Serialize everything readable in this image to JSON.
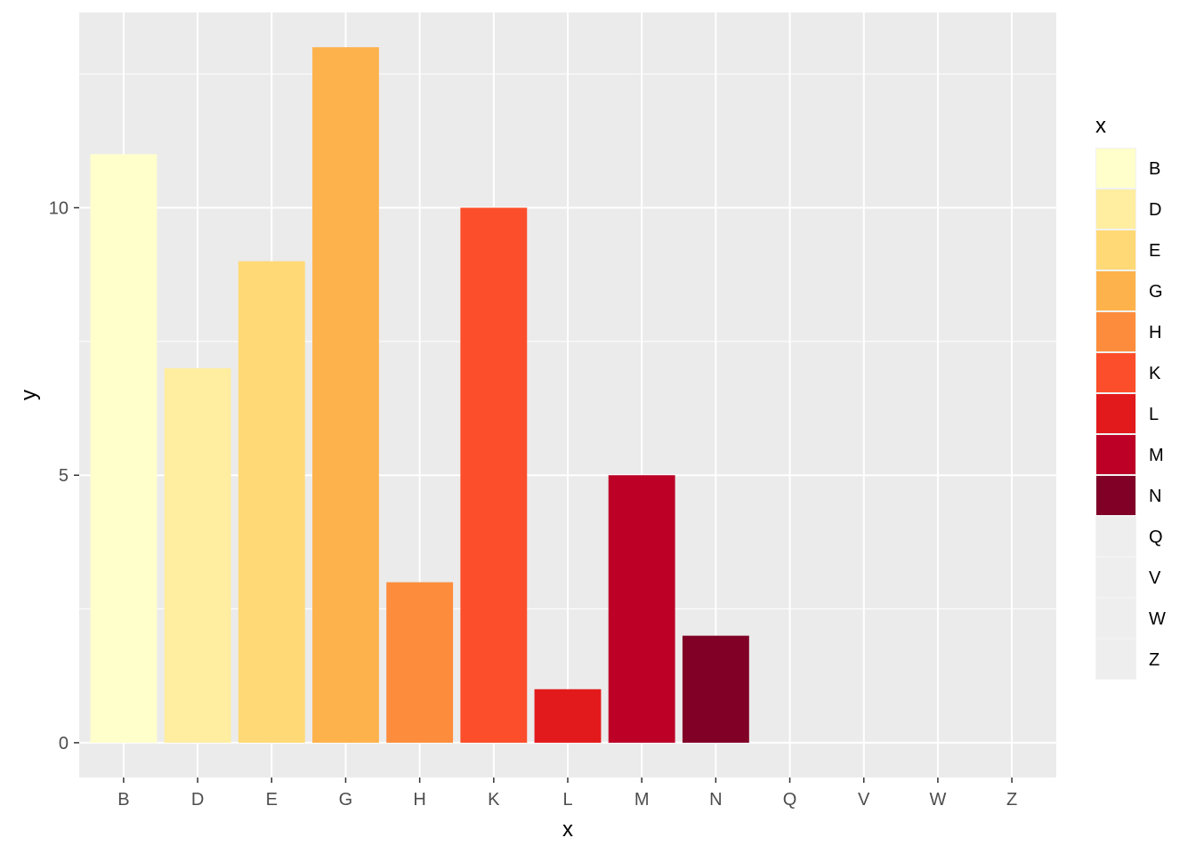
{
  "chart_data": {
    "type": "bar",
    "categories": [
      "B",
      "D",
      "E",
      "G",
      "H",
      "K",
      "L",
      "M",
      "N",
      "Q",
      "V",
      "W",
      "Z"
    ],
    "values": [
      11,
      7,
      9,
      13,
      3,
      10,
      1,
      5,
      2,
      0,
      0,
      0,
      0
    ],
    "colors": [
      "#FFFFCC",
      "#FFEDA0",
      "#FED976",
      "#FEB24C",
      "#FD8D3C",
      "#FC4E2A",
      "#E31A1C",
      "#BD0026",
      "#800026",
      "#EEEEEE",
      "#EEEEEE",
      "#EEEEEE",
      "#EEEEEE"
    ],
    "xlabel": "x",
    "ylabel": "y",
    "ylim": [
      -0.65,
      13.65
    ],
    "yticks": [
      0,
      5,
      10
    ],
    "ytick_labels": [
      "0",
      "5",
      "10"
    ],
    "grid": true,
    "panel_background": "#EBEBEB",
    "grid_color": "#FFFFFF",
    "legend": {
      "title": "x",
      "position": "right",
      "entries": [
        "B",
        "D",
        "E",
        "G",
        "H",
        "K",
        "L",
        "M",
        "N",
        "Q",
        "V",
        "W",
        "Z"
      ]
    }
  }
}
